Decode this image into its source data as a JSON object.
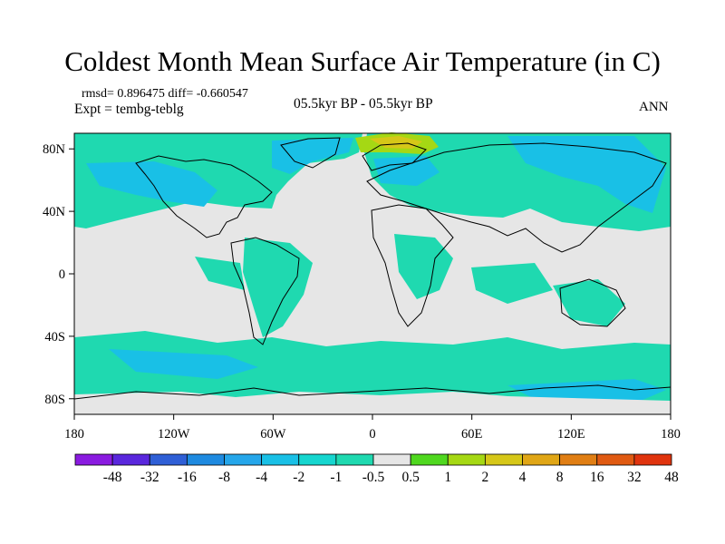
{
  "title": "Coldest Month Mean Surface Air Temperature (in C)",
  "stats": "rmsd= 0.896475 diff= -0.660547",
  "experiment": "Expt = tembg-teblg",
  "period": "05.5kyr BP - 05.5kyr BP",
  "season": "ANN",
  "lat_axis": {
    "labels": [
      "80N",
      "40N",
      "0",
      "40S",
      "80S"
    ],
    "values": [
      80,
      40,
      0,
      -40,
      -80
    ],
    "range": [
      -90,
      90
    ]
  },
  "lon_axis": {
    "labels": [
      "180",
      "120W",
      "60W",
      "0",
      "60E",
      "120E",
      "180"
    ],
    "values": [
      -180,
      -120,
      -60,
      0,
      60,
      120,
      180
    ],
    "range": [
      -180,
      180
    ]
  },
  "colorbar": {
    "labels": [
      "-48",
      "-32",
      "-16",
      "-8",
      "-4",
      "-2",
      "-1",
      "-0.5",
      "0.5",
      "1",
      "2",
      "4",
      "8",
      "16",
      "32",
      "48"
    ],
    "colors": [
      "#8a1be0",
      "#5a27dd",
      "#2f5fd6",
      "#1e8ae0",
      "#25a6ea",
      "#19c0e6",
      "#16d6cf",
      "#1fd9b0",
      "#e6e6e6",
      "#4fd81f",
      "#a5d814",
      "#d6c718",
      "#e0a616",
      "#e07e14",
      "#e05a12",
      "#e0340e"
    ]
  },
  "colors": {
    "neutral": "#e6e6e6",
    "cool_weak": "#1fd9b0",
    "cool_moderate": "#16d6cf",
    "cool_strong": "#19c0e6",
    "warm_weak": "#a5d814",
    "warm_moderate": "#d6c718"
  }
}
